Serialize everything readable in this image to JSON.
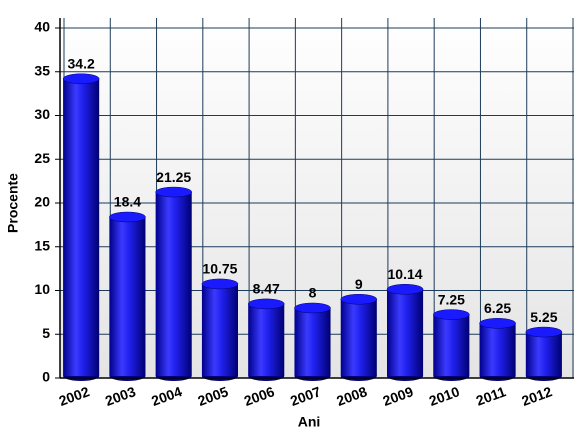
{
  "chart_data": {
    "type": "bar",
    "x_label": "Ani",
    "y_label": "Procente",
    "categories": [
      "2002",
      "2003",
      "2004",
      "2005",
      "2006",
      "2007",
      "2008",
      "2009",
      "2010",
      "2011",
      "2012"
    ],
    "values": [
      34.2,
      18.4,
      21.25,
      10.75,
      8.47,
      8,
      9,
      10.14,
      7.25,
      6.25,
      5.25
    ],
    "color": "#1a1aff",
    "ylim": [
      0,
      40
    ],
    "yticks": [
      0,
      5,
      10,
      15,
      20,
      25,
      30,
      35,
      40
    ],
    "grid": true
  }
}
